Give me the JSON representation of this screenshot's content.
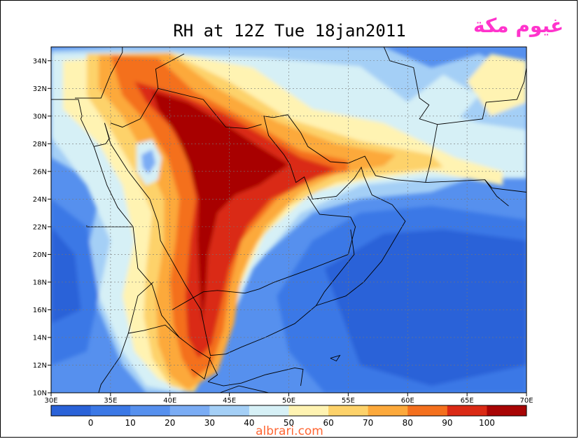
{
  "title": "RH at 12Z Tue 18jan2011",
  "logo_text": "غيوم مكة",
  "watermark": "albrari.com",
  "map": {
    "variable": "RH",
    "lon_range": [
      30,
      70
    ],
    "lat_range": [
      10,
      35
    ],
    "lon_ticks": [
      "30E",
      "35E",
      "40E",
      "45E",
      "50E",
      "55E",
      "60E",
      "65E",
      "70E"
    ],
    "lat_ticks": [
      "10N",
      "12N",
      "14N",
      "16N",
      "18N",
      "20N",
      "22N",
      "24N",
      "26N",
      "28N",
      "30N",
      "32N",
      "34N"
    ]
  },
  "colorbar": {
    "labels": [
      "0",
      "10",
      "20",
      "30",
      "40",
      "50",
      "60",
      "70",
      "80",
      "90",
      "100"
    ],
    "colors": [
      "#2a62d8",
      "#3b78e6",
      "#5690ee",
      "#7aacf4",
      "#a4cff6",
      "#d6f0f6",
      "#fff3b2",
      "#fdd26a",
      "#fca93b",
      "#f4701e",
      "#da2a15",
      "#a80505"
    ]
  }
}
